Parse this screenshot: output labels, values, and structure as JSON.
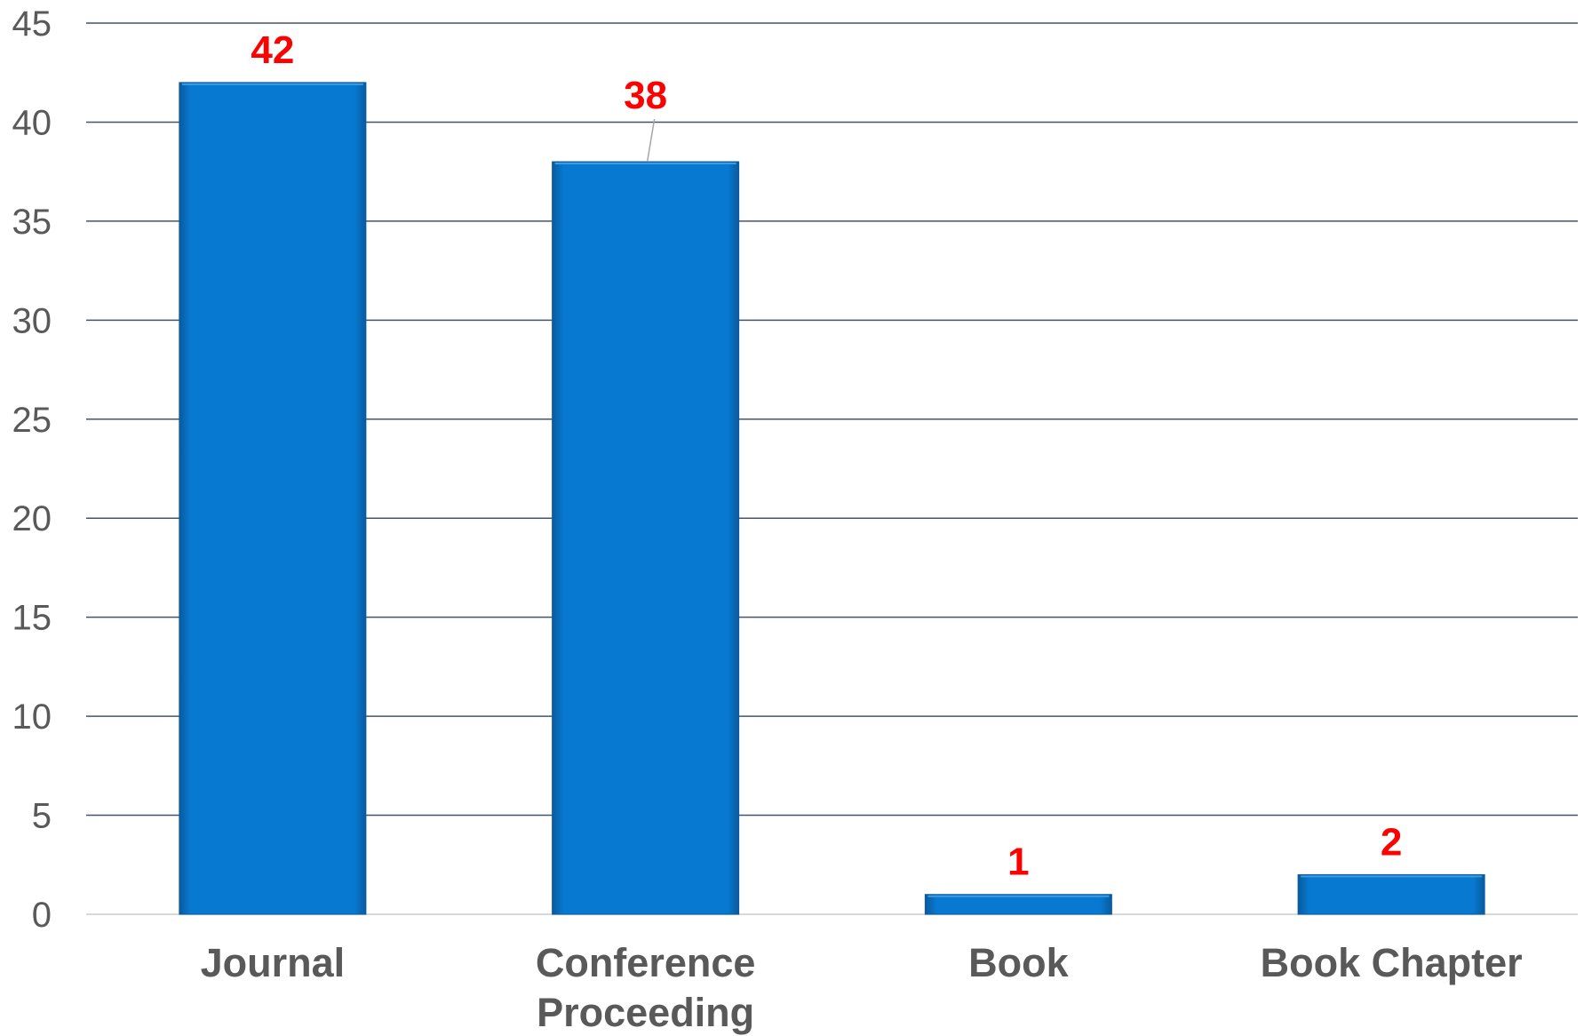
{
  "chart_data": {
    "type": "bar",
    "categories": [
      "Journal",
      "Conference Proceeding",
      "Book",
      "Book Chapter"
    ],
    "category_lines": [
      [
        "Journal"
      ],
      [
        "Conference",
        "Proceeding"
      ],
      [
        "Book"
      ],
      [
        "Book Chapter"
      ]
    ],
    "values": [
      42,
      38,
      1,
      2
    ],
    "data_labels": [
      "42",
      "38",
      "1",
      "2"
    ],
    "title": "",
    "xlabel": "",
    "ylabel": "",
    "ylim": [
      0,
      45
    ],
    "yticks": [
      0,
      5,
      10,
      15,
      20,
      25,
      30,
      35,
      40,
      45
    ],
    "grid": true,
    "legend": "none",
    "colors": {
      "bar": "#0779d0",
      "bar_edge": "#0a5a9e",
      "data_label": "#ff0000",
      "gridline": "#44546a",
      "axis_line": "#d9d9d9",
      "tick_text": "#595959",
      "leader_line": "#a6a6a6"
    }
  }
}
